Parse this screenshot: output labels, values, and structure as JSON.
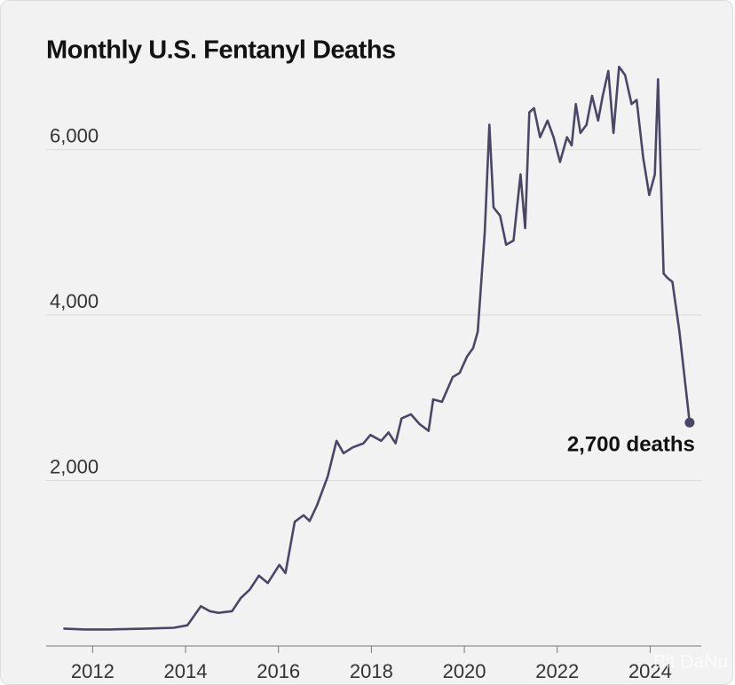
{
  "chart_data": {
    "type": "line",
    "title": "Monthly U.S. Fentanyl Deaths",
    "x": [
      2011.37,
      2011.83,
      2012.4,
      2013.17,
      2013.75,
      2014.04,
      2014.33,
      2014.52,
      2014.71,
      2015.0,
      2015.19,
      2015.38,
      2015.58,
      2015.77,
      2016.02,
      2016.15,
      2016.35,
      2016.54,
      2016.67,
      2016.83,
      2017.06,
      2017.25,
      2017.4,
      2017.6,
      2017.83,
      2017.98,
      2018.21,
      2018.37,
      2018.52,
      2018.65,
      2018.85,
      2019.04,
      2019.23,
      2019.33,
      2019.52,
      2019.75,
      2019.9,
      2020.06,
      2020.19,
      2020.29,
      2020.44,
      2020.54,
      2020.63,
      2020.77,
      2020.9,
      2021.06,
      2021.21,
      2021.31,
      2021.4,
      2021.5,
      2021.63,
      2021.79,
      2021.92,
      2022.06,
      2022.21,
      2022.31,
      2022.4,
      2022.5,
      2022.63,
      2022.75,
      2022.88,
      2022.98,
      2023.1,
      2023.21,
      2023.33,
      2023.46,
      2023.6,
      2023.71,
      2023.85,
      2023.98,
      2024.1,
      2024.17,
      2024.29,
      2024.37,
      2024.48,
      2024.63,
      2024.85
    ],
    "values": [
      210,
      200,
      200,
      210,
      220,
      250,
      480,
      420,
      400,
      420,
      580,
      680,
      850,
      760,
      980,
      880,
      1500,
      1580,
      1510,
      1700,
      2050,
      2480,
      2330,
      2400,
      2450,
      2550,
      2480,
      2580,
      2450,
      2750,
      2800,
      2680,
      2600,
      2980,
      2950,
      3250,
      3300,
      3500,
      3600,
      3800,
      5000,
      6300,
      5300,
      5200,
      4850,
      4900,
      5700,
      5050,
      6450,
      6500,
      6150,
      6350,
      6150,
      5850,
      6150,
      6050,
      6550,
      6200,
      6300,
      6650,
      6350,
      6650,
      6950,
      6200,
      7000,
      6900,
      6550,
      6600,
      5900,
      5450,
      5700,
      6850,
      4500,
      4450,
      4400,
      3800,
      2700
    ],
    "color": "#4a4766",
    "xlim": [
      2011.0,
      2025.1
    ],
    "xticks": [
      2012,
      2014,
      2016,
      2018,
      2020,
      2022,
      2024
    ],
    "ylim": [
      0,
      7100
    ],
    "yticks": [
      {
        "value": 2000,
        "label": "2,000"
      },
      {
        "value": 4000,
        "label": "4,000"
      },
      {
        "value": 6000,
        "label": "6,000"
      }
    ],
    "grid": true,
    "annotation": "2,700 deaths",
    "watermark": "Bit DaNu"
  }
}
